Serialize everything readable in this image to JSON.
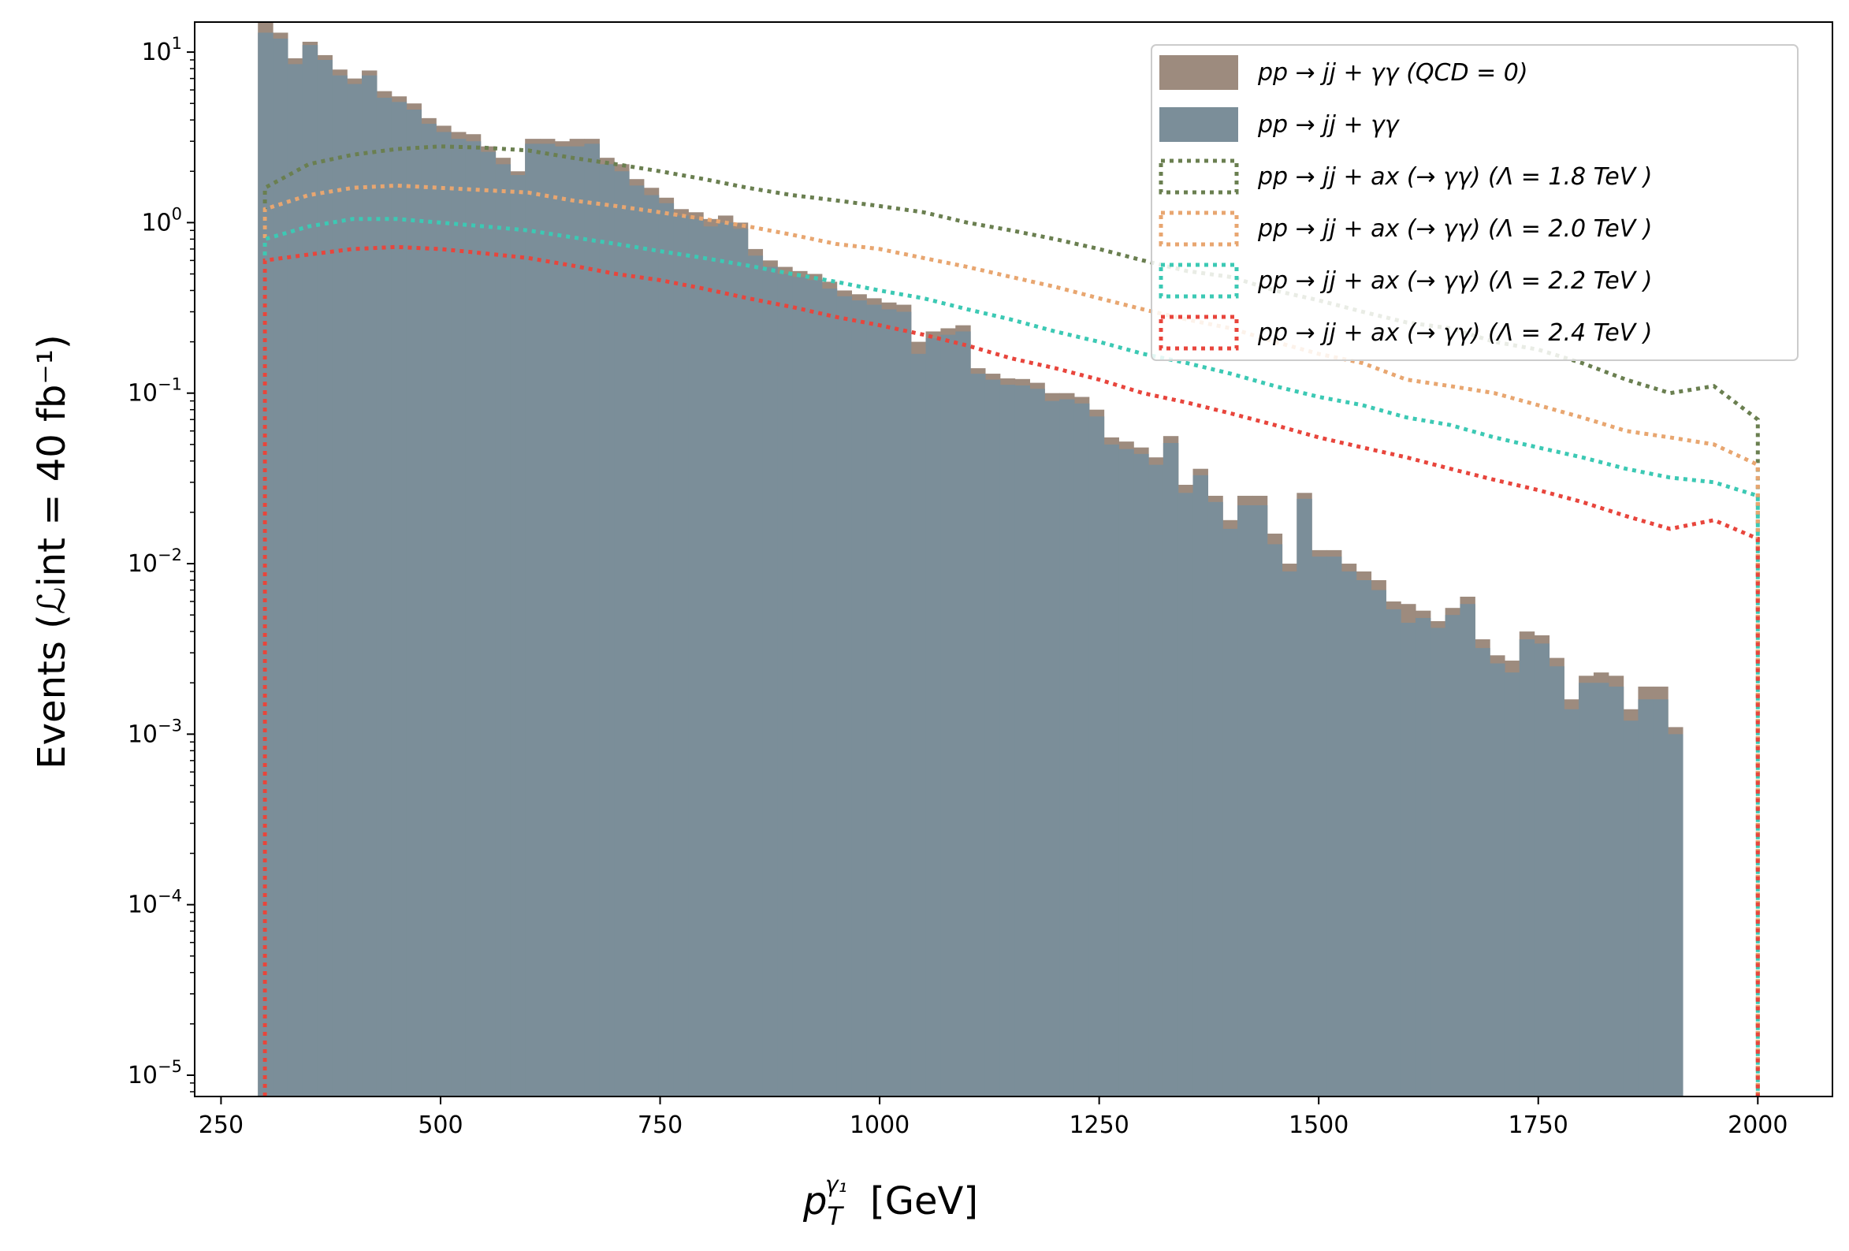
{
  "chart_data": {
    "type": "histogram",
    "xlabel_base": "p",
    "xlabel_sub": "T",
    "xlabel_sup": "γ₁",
    "xlabel_unit": "[GeV]",
    "ylabel": "Events (ℒint = 40 fb⁻¹)",
    "yscale": "log",
    "xlim": [
      220,
      2085
    ],
    "ylim": [
      7.5e-06,
      15
    ],
    "xticks": [
      250,
      500,
      750,
      1000,
      1250,
      1500,
      1750,
      2000
    ],
    "xtick_labels": [
      "250",
      "500",
      "750",
      "1000",
      "1250",
      "1500",
      "1750",
      "2000"
    ],
    "yticks": [
      {
        "base": "10",
        "exp": "1",
        "value": 10
      },
      {
        "base": "10",
        "exp": "0",
        "value": 1
      },
      {
        "base": "10",
        "exp": "−1",
        "value": 0.1
      },
      {
        "base": "10",
        "exp": "−2",
        "value": 0.01
      },
      {
        "base": "10",
        "exp": "−3",
        "value": 0.001
      },
      {
        "base": "10",
        "exp": "−4",
        "value": 0.0001
      },
      {
        "base": "10",
        "exp": "−5",
        "value": 1e-05
      }
    ],
    "bin_edges_start": 292,
    "bin_width": 16.9,
    "legend": {
      "position": "upper right"
    },
    "series": [
      {
        "name": "pp → jj + γγ (QCD = 0)",
        "style": "filled",
        "color": "#9d8b7e",
        "values": [
          15.0,
          13.0,
          9.2,
          11.5,
          9.6,
          7.9,
          7.0,
          7.8,
          5.9,
          5.5,
          5.0,
          4.1,
          3.7,
          3.4,
          3.3,
          2.8,
          2.4,
          2.0,
          3.1,
          3.1,
          3.0,
          3.1,
          3.1,
          2.4,
          2.2,
          1.8,
          1.6,
          1.4,
          1.2,
          1.15,
          1.05,
          1.1,
          1.0,
          0.7,
          0.6,
          0.55,
          0.52,
          0.5,
          0.45,
          0.4,
          0.38,
          0.36,
          0.34,
          0.33,
          0.2,
          0.23,
          0.24,
          0.25,
          0.14,
          0.13,
          0.122,
          0.121,
          0.115,
          0.1,
          0.1,
          0.095,
          0.08,
          0.055,
          0.052,
          0.048,
          0.042,
          0.056,
          0.029,
          0.036,
          0.025,
          0.018,
          0.025,
          0.025,
          0.015,
          0.01,
          0.026,
          0.012,
          0.012,
          0.01,
          0.009,
          0.008,
          0.006,
          0.0058,
          0.0053,
          0.0046,
          0.0055,
          0.0064,
          0.0036,
          0.0029,
          0.0027,
          0.004,
          0.0038,
          0.0028,
          0.0016,
          0.0022,
          0.0023,
          0.0022,
          0.0014,
          0.0019,
          0.0019,
          0.0011
        ]
      },
      {
        "name": "pp → jj + γγ",
        "style": "filled",
        "color": "#7b8e99",
        "values": [
          13.0,
          12.0,
          8.5,
          11.0,
          9.0,
          7.3,
          6.5,
          7.3,
          5.4,
          5.1,
          4.6,
          3.8,
          3.4,
          3.1,
          3.0,
          2.6,
          2.2,
          1.9,
          2.9,
          2.9,
          2.8,
          2.8,
          2.9,
          2.2,
          2.0,
          1.65,
          1.45,
          1.3,
          1.1,
          1.05,
          0.95,
          1.0,
          0.92,
          0.64,
          0.55,
          0.5,
          0.48,
          0.46,
          0.41,
          0.37,
          0.35,
          0.33,
          0.31,
          0.3,
          0.17,
          0.21,
          0.22,
          0.23,
          0.13,
          0.12,
          0.112,
          0.111,
          0.106,
          0.09,
          0.092,
          0.087,
          0.073,
          0.05,
          0.047,
          0.044,
          0.038,
          0.051,
          0.026,
          0.033,
          0.023,
          0.016,
          0.022,
          0.022,
          0.013,
          0.009,
          0.024,
          0.011,
          0.011,
          0.009,
          0.008,
          0.007,
          0.0054,
          0.0045,
          0.0048,
          0.0042,
          0.005,
          0.0058,
          0.0032,
          0.0026,
          0.0023,
          0.0036,
          0.0034,
          0.0025,
          0.0014,
          0.002,
          0.002,
          0.0019,
          0.0012,
          0.0016,
          0.0016,
          0.001
        ]
      },
      {
        "name": "pp → jj + ax (→ γγ) (Λ = 1.8 TeV )",
        "style": "dotted",
        "color": "#6a7f50",
        "points": [
          [
            300,
            1.6
          ],
          [
            350,
            2.2
          ],
          [
            400,
            2.5
          ],
          [
            450,
            2.7
          ],
          [
            500,
            2.8
          ],
          [
            550,
            2.75
          ],
          [
            600,
            2.65
          ],
          [
            650,
            2.4
          ],
          [
            700,
            2.2
          ],
          [
            750,
            2.0
          ],
          [
            800,
            1.8
          ],
          [
            850,
            1.6
          ],
          [
            900,
            1.45
          ],
          [
            950,
            1.35
          ],
          [
            1000,
            1.25
          ],
          [
            1050,
            1.15
          ],
          [
            1100,
            1.0
          ],
          [
            1150,
            0.9
          ],
          [
            1200,
            0.8
          ],
          [
            1250,
            0.7
          ],
          [
            1300,
            0.6
          ],
          [
            1350,
            0.52
          ],
          [
            1400,
            0.48
          ],
          [
            1450,
            0.4
          ],
          [
            1500,
            0.35
          ],
          [
            1550,
            0.3
          ],
          [
            1600,
            0.26
          ],
          [
            1650,
            0.24
          ],
          [
            1700,
            0.2
          ],
          [
            1750,
            0.18
          ],
          [
            1800,
            0.15
          ],
          [
            1850,
            0.12
          ],
          [
            1900,
            0.1
          ],
          [
            1950,
            0.11
          ],
          [
            2000,
            0.07
          ]
        ]
      },
      {
        "name": "pp → jj + ax (→ γγ) (Λ = 2.0 TeV )",
        "style": "dotted",
        "color": "#e8a670",
        "points": [
          [
            300,
            1.2
          ],
          [
            350,
            1.45
          ],
          [
            400,
            1.6
          ],
          [
            450,
            1.65
          ],
          [
            500,
            1.6
          ],
          [
            550,
            1.55
          ],
          [
            600,
            1.5
          ],
          [
            650,
            1.35
          ],
          [
            700,
            1.25
          ],
          [
            750,
            1.15
          ],
          [
            800,
            1.05
          ],
          [
            850,
            0.95
          ],
          [
            900,
            0.85
          ],
          [
            950,
            0.75
          ],
          [
            1000,
            0.7
          ],
          [
            1050,
            0.62
          ],
          [
            1100,
            0.55
          ],
          [
            1150,
            0.48
          ],
          [
            1200,
            0.42
          ],
          [
            1250,
            0.36
          ],
          [
            1300,
            0.31
          ],
          [
            1350,
            0.27
          ],
          [
            1400,
            0.24
          ],
          [
            1450,
            0.2
          ],
          [
            1500,
            0.17
          ],
          [
            1550,
            0.15
          ],
          [
            1600,
            0.12
          ],
          [
            1650,
            0.11
          ],
          [
            1700,
            0.1
          ],
          [
            1750,
            0.085
          ],
          [
            1800,
            0.072
          ],
          [
            1850,
            0.06
          ],
          [
            1900,
            0.055
          ],
          [
            1950,
            0.05
          ],
          [
            2000,
            0.038
          ]
        ]
      },
      {
        "name": "pp → jj + ax (→ γγ) (Λ = 2.2 TeV )",
        "style": "dotted",
        "color": "#3cc9b4",
        "points": [
          [
            300,
            0.8
          ],
          [
            350,
            0.95
          ],
          [
            400,
            1.05
          ],
          [
            450,
            1.05
          ],
          [
            500,
            1.0
          ],
          [
            550,
            0.95
          ],
          [
            600,
            0.9
          ],
          [
            650,
            0.82
          ],
          [
            700,
            0.75
          ],
          [
            750,
            0.68
          ],
          [
            800,
            0.62
          ],
          [
            850,
            0.56
          ],
          [
            900,
            0.5
          ],
          [
            950,
            0.45
          ],
          [
            1000,
            0.4
          ],
          [
            1050,
            0.36
          ],
          [
            1100,
            0.31
          ],
          [
            1150,
            0.27
          ],
          [
            1200,
            0.23
          ],
          [
            1250,
            0.2
          ],
          [
            1300,
            0.17
          ],
          [
            1350,
            0.15
          ],
          [
            1400,
            0.13
          ],
          [
            1450,
            0.11
          ],
          [
            1500,
            0.095
          ],
          [
            1550,
            0.085
          ],
          [
            1600,
            0.072
          ],
          [
            1650,
            0.065
          ],
          [
            1700,
            0.055
          ],
          [
            1750,
            0.048
          ],
          [
            1800,
            0.042
          ],
          [
            1850,
            0.036
          ],
          [
            1900,
            0.032
          ],
          [
            1950,
            0.03
          ],
          [
            2000,
            0.025
          ]
        ]
      },
      {
        "name": "pp → jj + ax (→ γγ) (Λ = 2.4 TeV )",
        "style": "dotted",
        "color": "#e8453c",
        "points": [
          [
            300,
            0.6
          ],
          [
            350,
            0.65
          ],
          [
            400,
            0.7
          ],
          [
            450,
            0.72
          ],
          [
            500,
            0.7
          ],
          [
            550,
            0.66
          ],
          [
            600,
            0.62
          ],
          [
            650,
            0.56
          ],
          [
            700,
            0.5
          ],
          [
            750,
            0.46
          ],
          [
            800,
            0.41
          ],
          [
            850,
            0.36
          ],
          [
            900,
            0.32
          ],
          [
            950,
            0.28
          ],
          [
            1000,
            0.25
          ],
          [
            1050,
            0.22
          ],
          [
            1100,
            0.19
          ],
          [
            1150,
            0.16
          ],
          [
            1200,
            0.14
          ],
          [
            1250,
            0.12
          ],
          [
            1300,
            0.1
          ],
          [
            1350,
            0.088
          ],
          [
            1400,
            0.076
          ],
          [
            1450,
            0.065
          ],
          [
            1500,
            0.055
          ],
          [
            1550,
            0.048
          ],
          [
            1600,
            0.042
          ],
          [
            1650,
            0.036
          ],
          [
            1700,
            0.031
          ],
          [
            1750,
            0.027
          ],
          [
            1800,
            0.023
          ],
          [
            1850,
            0.019
          ],
          [
            1900,
            0.016
          ],
          [
            1950,
            0.018
          ],
          [
            2000,
            0.014
          ]
        ]
      }
    ]
  }
}
